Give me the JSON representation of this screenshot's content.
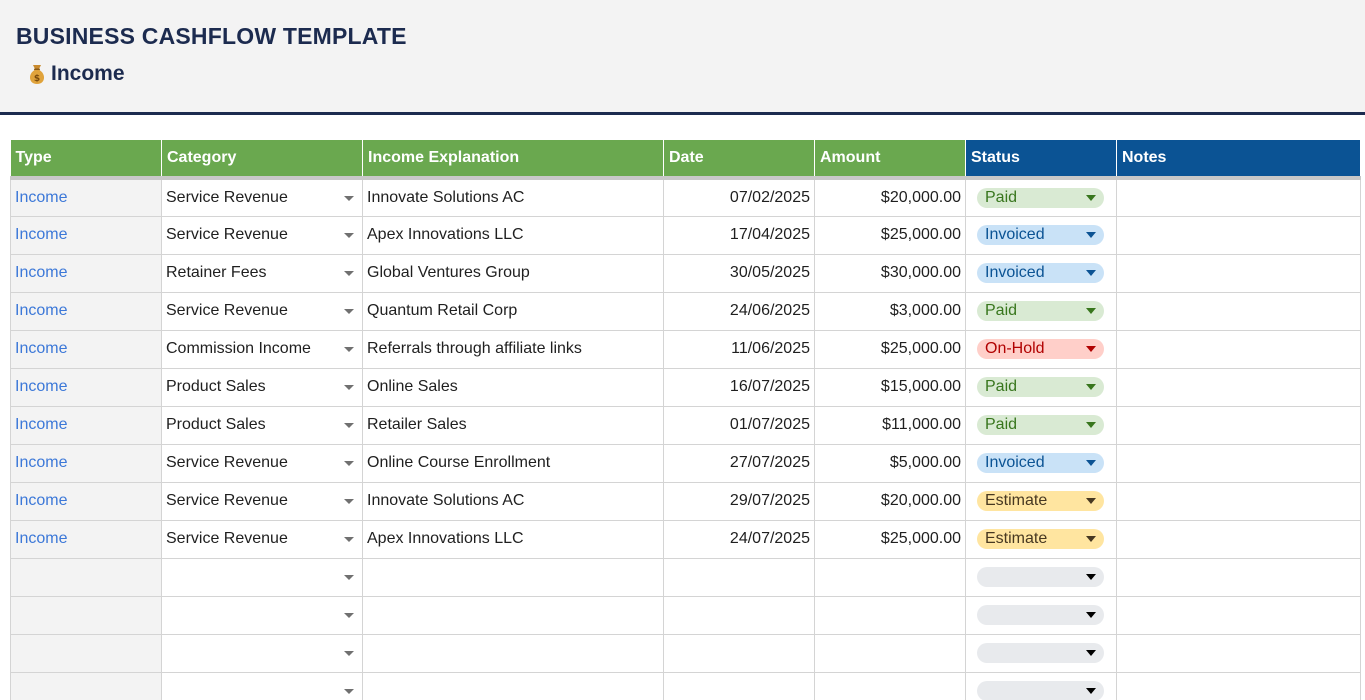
{
  "header": {
    "title": "BUSINESS CASHFLOW TEMPLATE",
    "section_icon": "money-bag-icon",
    "section_title": "Income"
  },
  "columns": [
    "Type",
    "Category",
    "Income Explanation",
    "Date",
    "Amount",
    "Status",
    "Notes"
  ],
  "header_colors": {
    "green": "#6aa84f",
    "blue": "#0b5394"
  },
  "status_styles": {
    "Paid": {
      "bg": "#d9ead3",
      "fg": "#38761d"
    },
    "Invoiced": {
      "bg": "#c9e2f7",
      "fg": "#0b5394"
    },
    "On-Hold": {
      "bg": "#ffcfc9",
      "fg": "#b10202"
    },
    "Estimate": {
      "bg": "#ffe5a0",
      "fg": "#473821"
    },
    "": {
      "bg": "#e8eaed",
      "fg": "#000000"
    }
  },
  "rows": [
    {
      "type": "Income",
      "category": "Service Revenue",
      "explanation": "Innovate Solutions AC",
      "date": "07/02/2025",
      "amount": "$20,000.00",
      "status": "Paid",
      "notes": ""
    },
    {
      "type": "Income",
      "category": "Service Revenue",
      "explanation": "Apex Innovations LLC",
      "date": "17/04/2025",
      "amount": "$25,000.00",
      "status": "Invoiced",
      "notes": ""
    },
    {
      "type": "Income",
      "category": "Retainer Fees",
      "explanation": "Global Ventures Group",
      "date": "30/05/2025",
      "amount": "$30,000.00",
      "status": "Invoiced",
      "notes": ""
    },
    {
      "type": "Income",
      "category": "Service Revenue",
      "explanation": "Quantum Retail Corp",
      "date": "24/06/2025",
      "amount": "$3,000.00",
      "status": "Paid",
      "notes": ""
    },
    {
      "type": "Income",
      "category": "Commission Income",
      "explanation": "Referrals through affiliate links",
      "date": "11/06/2025",
      "amount": "$25,000.00",
      "status": "On-Hold",
      "notes": ""
    },
    {
      "type": "Income",
      "category": "Product Sales",
      "explanation": "Online Sales",
      "date": "16/07/2025",
      "amount": "$15,000.00",
      "status": "Paid",
      "notes": ""
    },
    {
      "type": "Income",
      "category": "Product Sales",
      "explanation": "Retailer Sales",
      "date": "01/07/2025",
      "amount": "$11,000.00",
      "status": "Paid",
      "notes": ""
    },
    {
      "type": "Income",
      "category": "Service Revenue",
      "explanation": "Online Course Enrollment",
      "date": "27/07/2025",
      "amount": "$5,000.00",
      "status": "Invoiced",
      "notes": ""
    },
    {
      "type": "Income",
      "category": "Service Revenue",
      "explanation": "Innovate Solutions AC",
      "date": "29/07/2025",
      "amount": "$20,000.00",
      "status": "Estimate",
      "notes": ""
    },
    {
      "type": "Income",
      "category": "Service Revenue",
      "explanation": "Apex Innovations LLC",
      "date": "24/07/2025",
      "amount": "$25,000.00",
      "status": "Estimate",
      "notes": ""
    },
    {
      "type": "",
      "category": "",
      "explanation": "",
      "date": "",
      "amount": "",
      "status": "",
      "notes": ""
    },
    {
      "type": "",
      "category": "",
      "explanation": "",
      "date": "",
      "amount": "",
      "status": "",
      "notes": ""
    },
    {
      "type": "",
      "category": "",
      "explanation": "",
      "date": "",
      "amount": "",
      "status": "",
      "notes": ""
    },
    {
      "type": "",
      "category": "",
      "explanation": "",
      "date": "",
      "amount": "",
      "status": "",
      "notes": ""
    }
  ]
}
